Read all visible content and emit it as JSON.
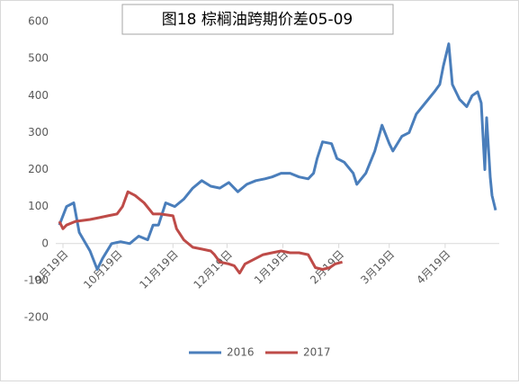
{
  "chart_data": {
    "type": "line",
    "title": "图18 棕榈油跨期价差05-09",
    "xlim": [
      -4,
      242
    ],
    "xticks": [
      {
        "value": 0,
        "label": "9月19日"
      },
      {
        "value": 30,
        "label": "10月19日"
      },
      {
        "value": 61,
        "label": "11月19日"
      },
      {
        "value": 91,
        "label": "12月19日"
      },
      {
        "value": 122,
        "label": "1月19日"
      },
      {
        "value": 153,
        "label": "2月19日"
      },
      {
        "value": 181,
        "label": "3月19日"
      },
      {
        "value": 212,
        "label": "4月19日"
      }
    ],
    "ylim": [
      -200,
      600
    ],
    "yticks": [
      -200,
      -100,
      0,
      100,
      200,
      300,
      400,
      500,
      600
    ],
    "grid": false,
    "legend": "bottom",
    "series": [
      {
        "name": "2016",
        "color": "#4a7ebb",
        "x": [
          -2,
          2,
          6,
          9,
          15,
          19,
          22,
          27,
          32,
          37,
          42,
          47,
          50,
          53,
          57,
          62,
          67,
          72,
          77,
          82,
          87,
          92,
          97,
          102,
          107,
          112,
          116,
          121,
          126,
          131,
          136,
          139,
          141,
          144,
          149,
          152,
          156,
          161,
          163,
          168,
          173,
          177,
          181,
          183,
          188,
          192,
          196,
          201,
          206,
          209,
          211,
          214,
          216,
          220,
          224,
          227,
          230,
          232,
          234,
          235,
          237,
          238,
          240
        ],
        "values": [
          50,
          100,
          110,
          30,
          -20,
          -70,
          -40,
          0,
          5,
          0,
          20,
          10,
          50,
          50,
          110,
          100,
          120,
          150,
          170,
          155,
          150,
          165,
          140,
          160,
          170,
          175,
          180,
          190,
          190,
          180,
          175,
          190,
          230,
          275,
          270,
          230,
          220,
          190,
          160,
          190,
          250,
          320,
          270,
          250,
          290,
          300,
          350,
          380,
          410,
          430,
          480,
          540,
          430,
          390,
          370,
          400,
          410,
          380,
          200,
          340,
          180,
          130,
          90
        ]
      },
      {
        "name": "2017",
        "color": "#be4b48",
        "x": [
          -2,
          0,
          2,
          7,
          15,
          20,
          25,
          30,
          33,
          36,
          40,
          45,
          50,
          54,
          61,
          63,
          67,
          72,
          77,
          82,
          84,
          87,
          92,
          95,
          98,
          101,
          107,
          111,
          116,
          121,
          126,
          131,
          136,
          140,
          144,
          148,
          151,
          155
        ],
        "values": [
          60,
          40,
          50,
          60,
          65,
          70,
          75,
          80,
          100,
          140,
          130,
          110,
          80,
          80,
          75,
          40,
          10,
          -10,
          -15,
          -20,
          -30,
          -50,
          -55,
          -60,
          -80,
          -55,
          -40,
          -30,
          -25,
          -20,
          -25,
          -25,
          -30,
          -65,
          -70,
          -65,
          -55,
          -50
        ]
      }
    ]
  }
}
